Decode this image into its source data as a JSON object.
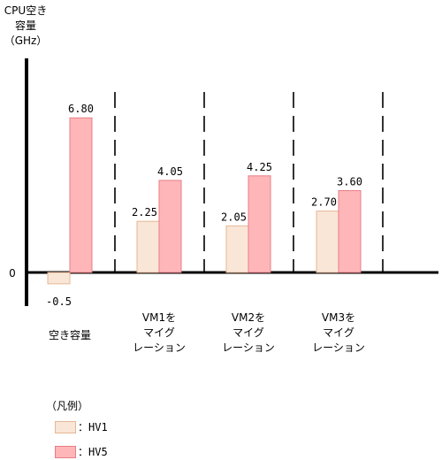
{
  "chart_data": {
    "type": "bar",
    "y_title_lines": [
      "CPU空き",
      "容量",
      "（GHz）"
    ],
    "y_ticks": [
      "0"
    ],
    "categories": [
      [
        "空き容量"
      ],
      [
        "VM1を",
        "マイグ",
        "レーション"
      ],
      [
        "VM2を",
        "マイグ",
        "レーション"
      ],
      [
        "VM3を",
        "マイグ",
        "レーション"
      ]
    ],
    "series": [
      {
        "name": "HV1",
        "color": "#f9e6d6",
        "stroke": "#e6b796",
        "values": [
          -0.5,
          2.25,
          2.05,
          2.7
        ],
        "labels": [
          "-0.5",
          "2.25",
          "2.05",
          "2.70"
        ]
      },
      {
        "name": "HV5",
        "color": "#ffb6b9",
        "stroke": "#e87e86",
        "values": [
          6.8,
          4.05,
          4.25,
          3.6
        ],
        "labels": [
          "6.80",
          "4.05",
          "4.25",
          "3.60"
        ]
      }
    ],
    "ylim": [
      -1.0,
      9.0
    ],
    "grid": false,
    "separators": "dashed-between-categories",
    "legend_position": "bottom-left"
  },
  "legend": {
    "title": "（凡例）",
    "items": [
      {
        "label": "：HV1",
        "color": "#f9e6d6",
        "stroke": "#e6b796"
      },
      {
        "label": "：HV5",
        "color": "#ffb6b9",
        "stroke": "#e87e86"
      }
    ]
  }
}
